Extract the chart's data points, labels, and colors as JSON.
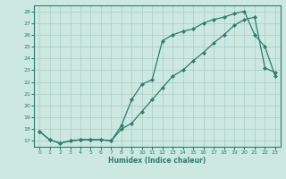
{
  "title": "",
  "xlabel": "Humidex (Indice chaleur)",
  "ylabel": "",
  "xlim": [
    -0.5,
    23.5
  ],
  "ylim": [
    16.5,
    28.5
  ],
  "yticks": [
    17,
    18,
    19,
    20,
    21,
    22,
    23,
    24,
    25,
    26,
    27,
    28
  ],
  "xticks": [
    0,
    1,
    2,
    3,
    4,
    5,
    6,
    7,
    8,
    9,
    10,
    11,
    12,
    13,
    14,
    15,
    16,
    17,
    18,
    19,
    20,
    21,
    22,
    23
  ],
  "line1_x": [
    0,
    1,
    2,
    3,
    4,
    5,
    6,
    7,
    8,
    9,
    10,
    11,
    12,
    13,
    14,
    15,
    16,
    17,
    18,
    19,
    20,
    21,
    22,
    23
  ],
  "line1_y": [
    17.8,
    17.1,
    16.8,
    17.0,
    17.1,
    17.1,
    17.1,
    17.0,
    18.3,
    20.5,
    21.8,
    22.2,
    25.5,
    26.0,
    26.3,
    26.5,
    27.0,
    27.3,
    27.5,
    27.8,
    28.0,
    26.0,
    25.0,
    22.5
  ],
  "line2_x": [
    0,
    1,
    2,
    3,
    4,
    5,
    6,
    7,
    8,
    9,
    10,
    11,
    12,
    13,
    14,
    15,
    16,
    17,
    18,
    19,
    20,
    21,
    22,
    23
  ],
  "line2_y": [
    17.8,
    17.1,
    16.8,
    17.0,
    17.1,
    17.1,
    17.1,
    17.0,
    18.0,
    18.5,
    19.5,
    20.5,
    21.5,
    22.5,
    23.0,
    23.8,
    24.5,
    25.3,
    26.0,
    26.8,
    27.3,
    27.5,
    23.2,
    22.8
  ],
  "line_color": "#2e7d6e",
  "bg_color": "#cce8e0",
  "grid_color": "#aaccC4",
  "marker": "D",
  "marker_size": 2.0,
  "line_width": 0.9
}
